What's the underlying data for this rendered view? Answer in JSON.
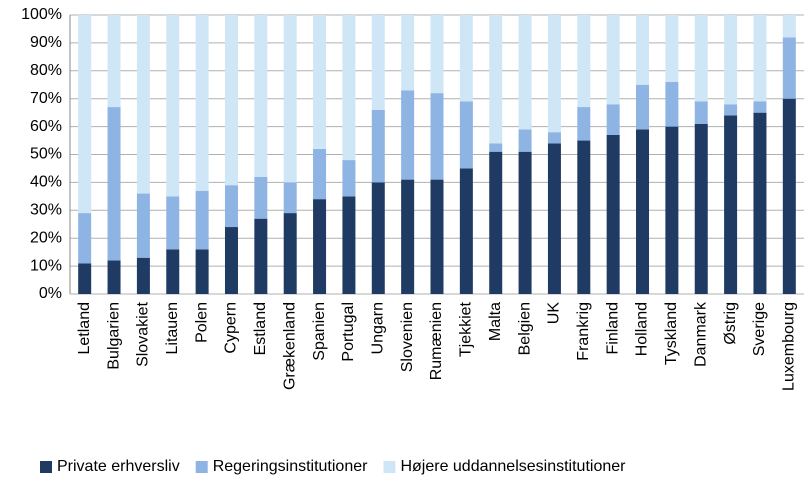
{
  "chart_data": {
    "type": "stacked_bar",
    "categories": [
      "Letland",
      "Bulgarien",
      "Slovakiet",
      "Litauen",
      "Polen",
      "Cypern",
      "Estland",
      "Grækenland",
      "Spanien",
      "Portugal",
      "Ungarn",
      "Slovenien",
      "Rumænien",
      "Tjekkiet",
      "Malta",
      "Belgien",
      "UK",
      "Frankrig",
      "Finland",
      "Holland",
      "Tyskland",
      "Danmark",
      "Østrig",
      "Sverige",
      "Luxembourg"
    ],
    "series": [
      {
        "name": "Private erhversliv",
        "color": "#1f3b64",
        "values": [
          11,
          12,
          13,
          16,
          16,
          24,
          27,
          29,
          34,
          35,
          40,
          41,
          41,
          45,
          51,
          51,
          54,
          55,
          57,
          59,
          60,
          61,
          64,
          65,
          70
        ]
      },
      {
        "name": "Regeringsinstitutioner",
        "color": "#8db4e2",
        "values": [
          18,
          55,
          23,
          19,
          21,
          15,
          15,
          11,
          18,
          13,
          26,
          32,
          31,
          24,
          3,
          8,
          4,
          12,
          11,
          16,
          16,
          8,
          4,
          4,
          22
        ]
      },
      {
        "name": "Højere uddannelsesinstitutioner",
        "color": "#cfe6f7",
        "values": [
          71,
          33,
          64,
          65,
          63,
          61,
          58,
          60,
          48,
          52,
          34,
          27,
          28,
          31,
          46,
          41,
          42,
          33,
          32,
          25,
          24,
          31,
          32,
          31,
          8
        ]
      }
    ],
    "ylim": [
      0,
      100
    ],
    "yticks": [
      {
        "value": 0,
        "label": "0%"
      },
      {
        "value": 10,
        "label": "10%"
      },
      {
        "value": 20,
        "label": "20%"
      },
      {
        "value": 30,
        "label": "30%"
      },
      {
        "value": 40,
        "label": "40%"
      },
      {
        "value": 50,
        "label": "50%"
      },
      {
        "value": 60,
        "label": "60%"
      },
      {
        "value": 70,
        "label": "70%"
      },
      {
        "value": 80,
        "label": "80%"
      },
      {
        "value": 90,
        "label": "90%"
      },
      {
        "value": 100,
        "label": "100%"
      }
    ],
    "grid": true,
    "legend": "bottom"
  }
}
